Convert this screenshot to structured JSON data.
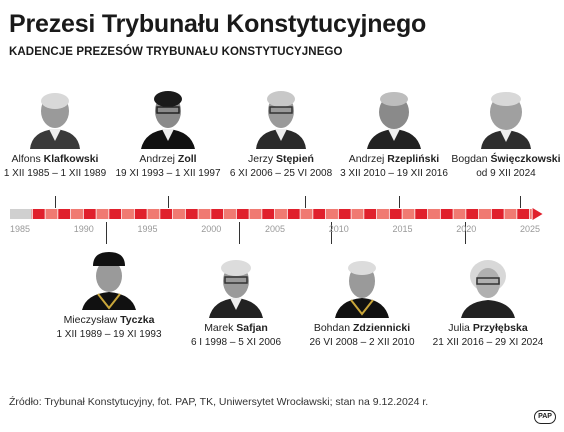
{
  "header": {
    "title": "Prezesi Trybunału Konstytucyjnego",
    "subtitle": "KADENCJE PREZESÓW TRYBUNAŁU KONSTYTUCYJNEGO"
  },
  "presidents_top": [
    {
      "first": "Alfons",
      "last": "Klafkowski",
      "term": "1 XII 1985 – 1 XII 1989"
    },
    {
      "first": "Andrzej",
      "last": "Zoll",
      "term": "19 XI 1993 – 1 XII 1997"
    },
    {
      "first": "Jerzy",
      "last": "Stępień",
      "term": "6 XI 2006 – 25 VI 2008"
    },
    {
      "first": "Andrzej",
      "last": "Rzepliński",
      "term": "3 XII 2010 – 19 XII 2016"
    },
    {
      "first": "Bogdan",
      "last": "Święczkowski",
      "term": "od 9 XII 2024"
    }
  ],
  "presidents_bottom": [
    {
      "first": "Mieczysław",
      "last": "Tyczka",
      "term": "1 XII 1989 – 19 XI 1993"
    },
    {
      "first": "Marek",
      "last": "Safjan",
      "term": "6 I 1998 – 5 XI 2006"
    },
    {
      "first": "Bohdan",
      "last": "Zdziennicki",
      "term": "26 VI 2008 – 2 XII 2010"
    },
    {
      "first": "Julia",
      "last": "Przyłębska",
      "term": "21 XII 2016 – 29 XI 2024"
    }
  ],
  "timeline": {
    "ticks": [
      "1985",
      "1990",
      "1995",
      "2000",
      "2005",
      "2010",
      "2015",
      "2020",
      "2025"
    ],
    "start_year": 1985,
    "end_year": 2025,
    "colors": {
      "dark": "#e0202c",
      "light": "#f07a72",
      "pre": "#d0d0d0"
    }
  },
  "footer": {
    "source": "Źródło: Trybunał Konstytucyjny, fot. PAP, TK, Uniwersytet Wrocławski; stan na 9.12.2024 r.",
    "logo": "PAP"
  }
}
